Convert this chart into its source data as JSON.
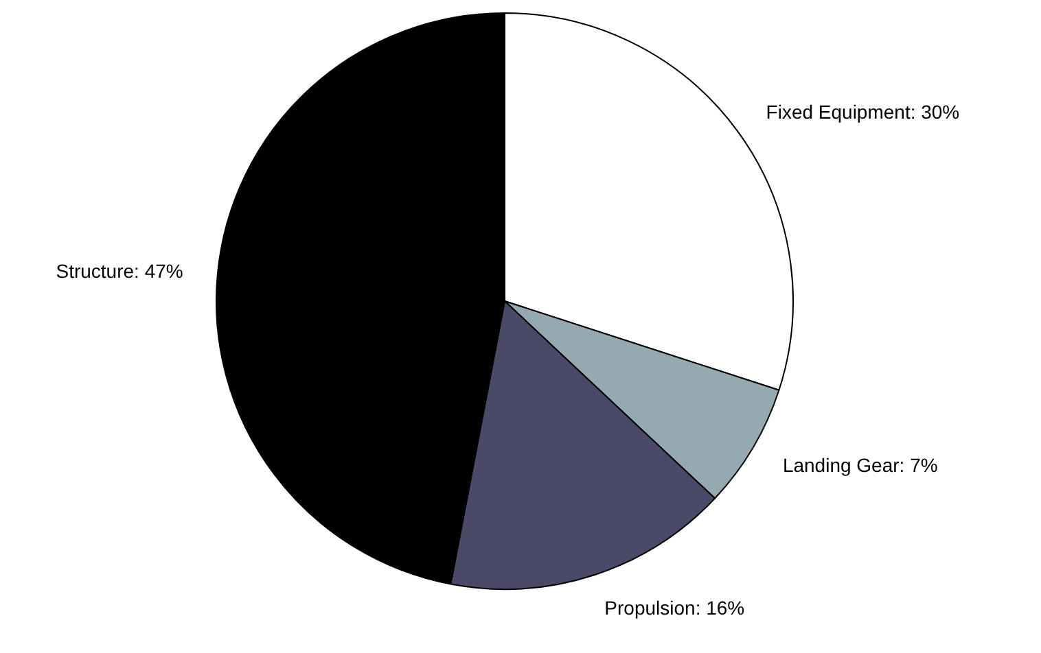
{
  "chart_data": {
    "type": "pie",
    "categories": [
      "Fixed Equipment",
      "Landing Gear",
      "Propulsion",
      "Structure"
    ],
    "values": [
      30,
      7,
      16,
      47
    ],
    "value_labels": [
      "30%",
      "7%",
      "16%",
      "47%"
    ],
    "colors": [
      "#ffffff",
      "#95aab0",
      "#4a4a68",
      "#000000"
    ]
  }
}
